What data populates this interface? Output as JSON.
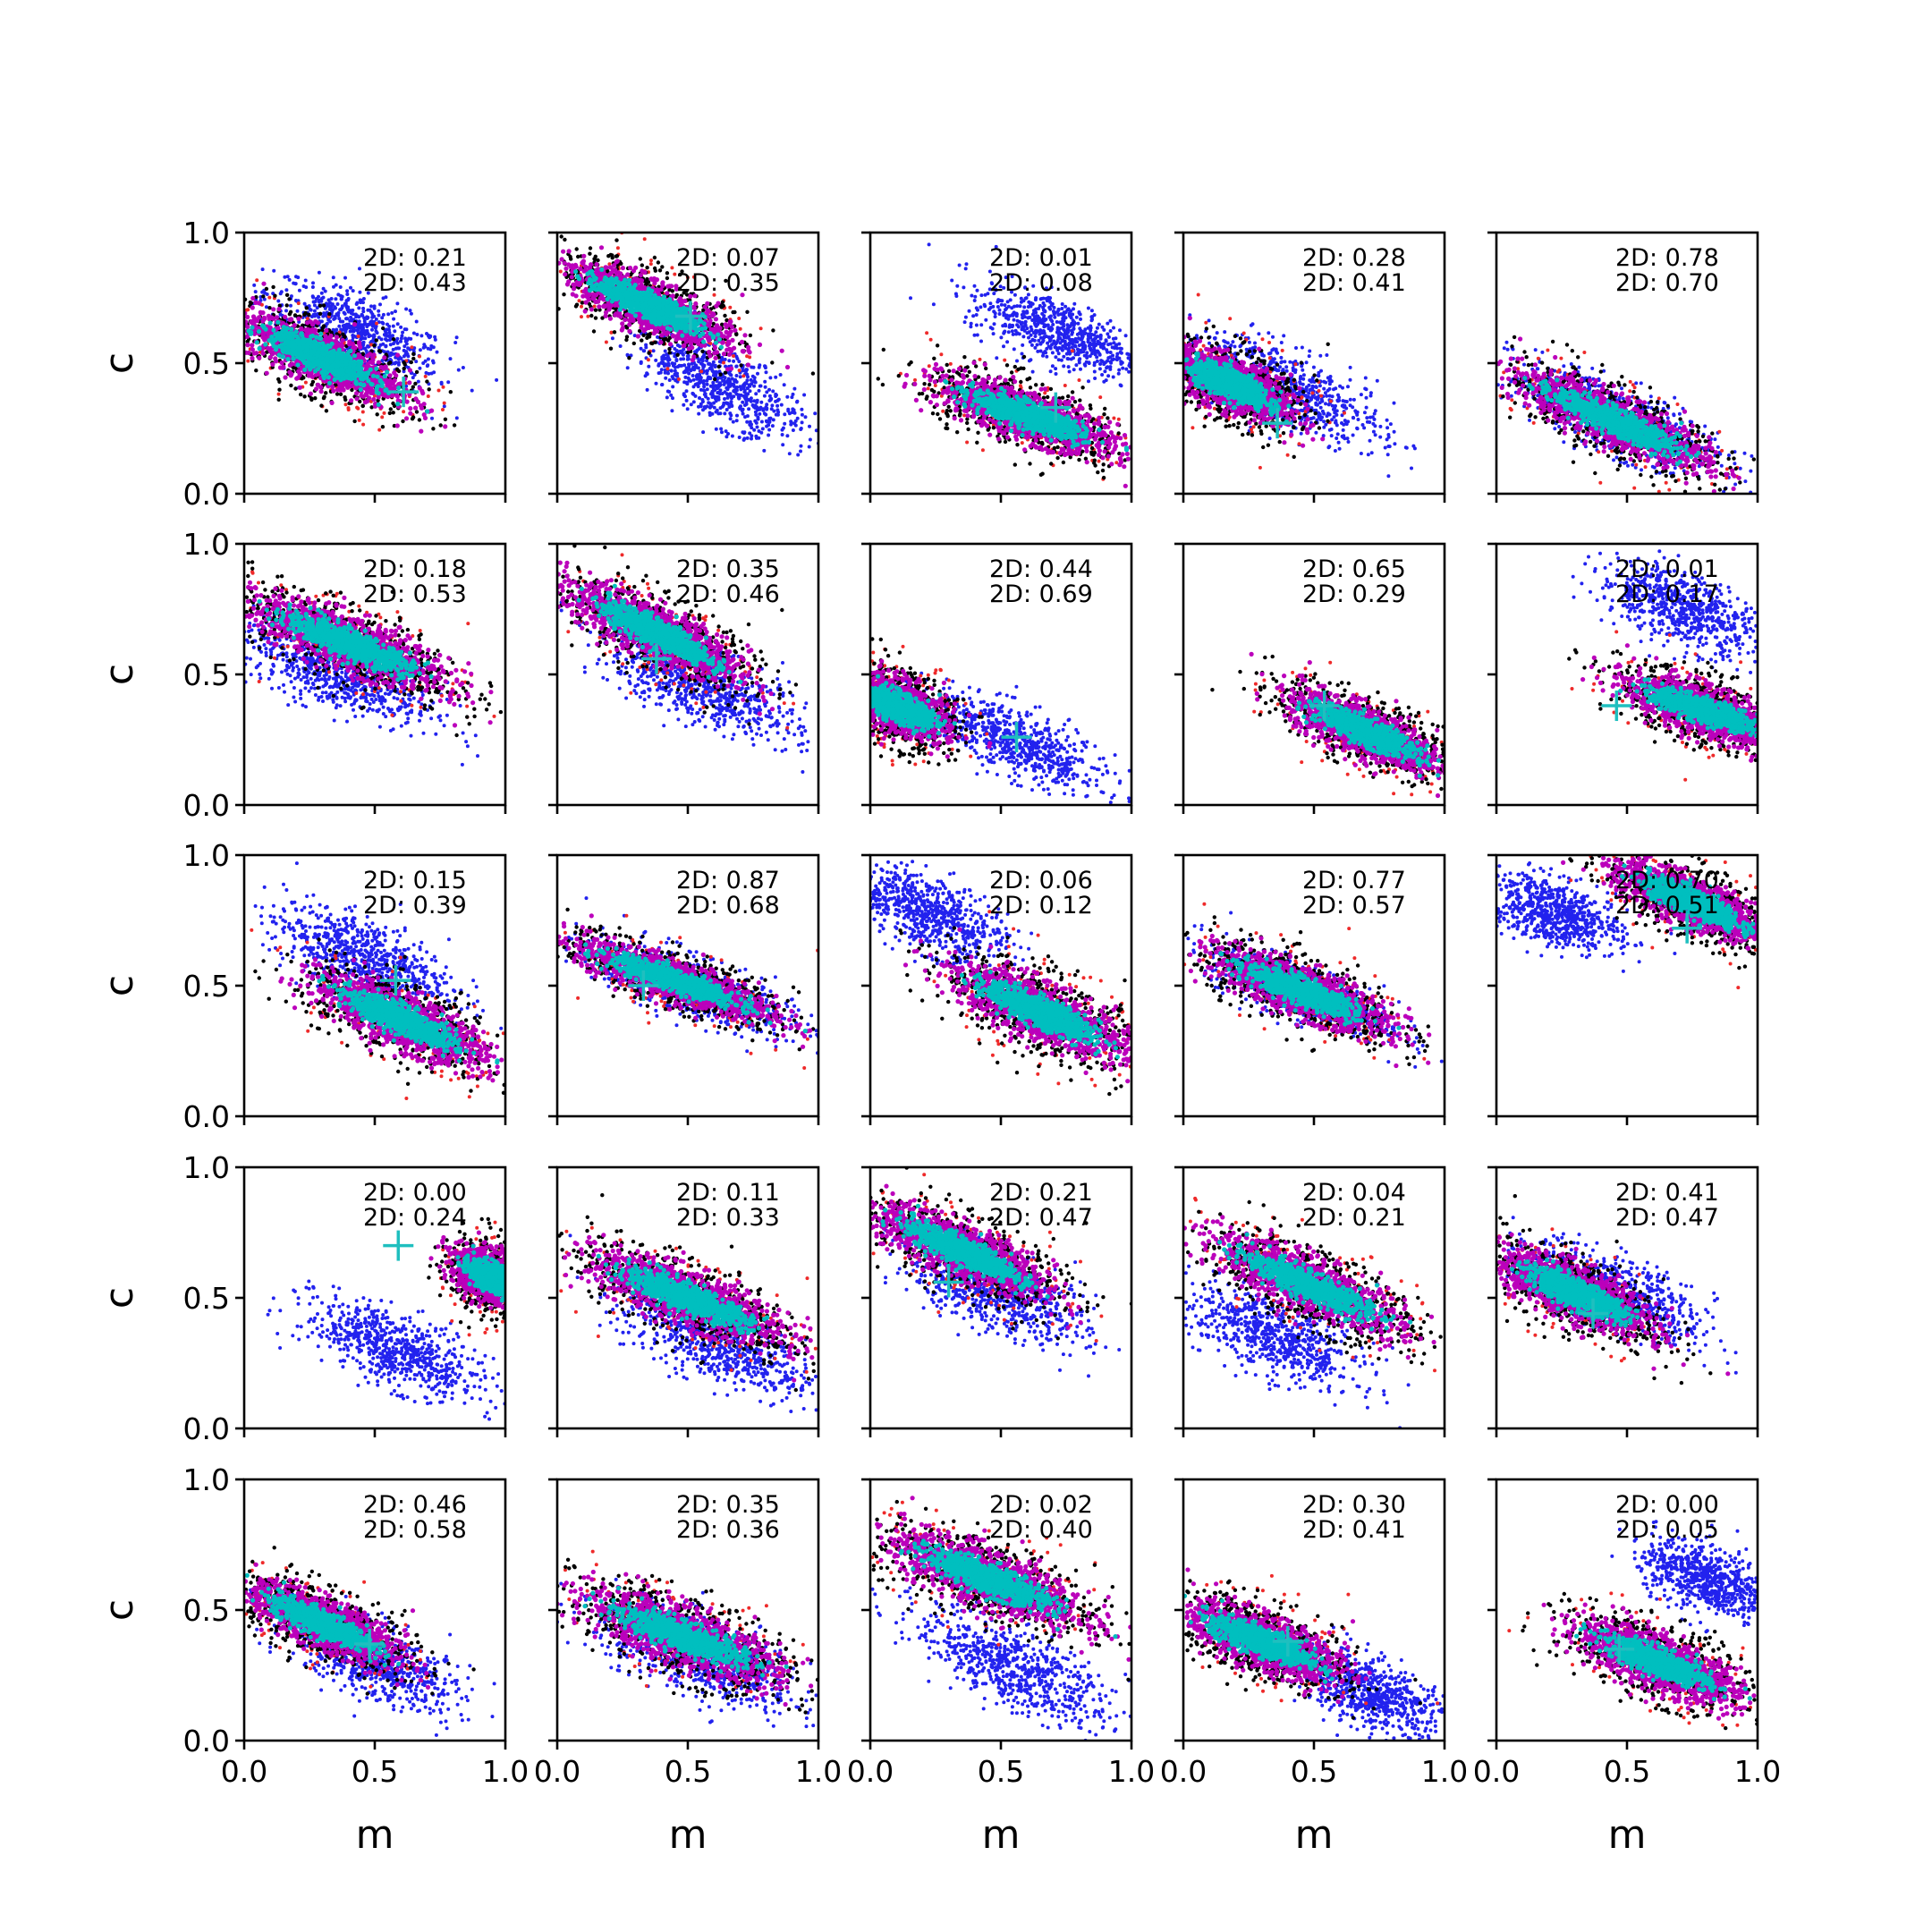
{
  "colors": {
    "blue": "#2222ee",
    "red": "#ee2a2a",
    "black": "#000000",
    "magenta": "#bb00bb",
    "cyan": "#00bfbf",
    "marker": "#1fbfbf"
  },
  "chart_data": {
    "type": "scatter",
    "layout": "5x5 grid of panels",
    "xlabel": "m",
    "ylabel": "c",
    "xlim": [
      0,
      1
    ],
    "ylim": [
      0,
      1
    ],
    "xticks": [
      "0.0",
      "0.5",
      "1.0"
    ],
    "yticks": [
      "0.0",
      "0.5",
      "1.0"
    ],
    "grid": false,
    "panels": [
      {
        "row": 0,
        "col": 0,
        "annot": [
          "2D: 0.21",
          "2D: 0.43"
        ],
        "main": {
          "cx": 0.3,
          "cy": 0.52,
          "slope": -0.45,
          "len": 0.42,
          "wid": 0.065
        },
        "blue": {
          "cx": 0.42,
          "cy": 0.62,
          "slope": -0.45,
          "len": 0.4,
          "wid": 0.07
        },
        "marker": [
          0.61,
          0.39
        ]
      },
      {
        "row": 0,
        "col": 1,
        "annot": [
          "2D: 0.07",
          "2D: 0.35"
        ],
        "main": {
          "cx": 0.35,
          "cy": 0.72,
          "slope": -0.45,
          "len": 0.42,
          "wid": 0.06
        },
        "blue": {
          "cx": 0.62,
          "cy": 0.42,
          "slope": -0.55,
          "len": 0.38,
          "wid": 0.065
        },
        "marker": [
          0.51,
          0.68
        ]
      },
      {
        "row": 0,
        "col": 2,
        "annot": [
          "2D: 0.01",
          "2D: 0.08"
        ],
        "main": {
          "cx": 0.6,
          "cy": 0.3,
          "slope": -0.35,
          "len": 0.45,
          "wid": 0.06
        },
        "blue": {
          "cx": 0.72,
          "cy": 0.62,
          "slope": -0.4,
          "len": 0.38,
          "wid": 0.06
        },
        "marker": [
          0.71,
          0.33
        ]
      },
      {
        "row": 0,
        "col": 3,
        "annot": [
          "2D: 0.28",
          "2D: 0.41"
        ],
        "main": {
          "cx": 0.18,
          "cy": 0.42,
          "slope": -0.45,
          "len": 0.32,
          "wid": 0.065
        },
        "blue": {
          "cx": 0.4,
          "cy": 0.4,
          "slope": -0.45,
          "len": 0.45,
          "wid": 0.07
        },
        "marker": [
          0.36,
          0.27
        ]
      },
      {
        "row": 0,
        "col": 4,
        "annot": [
          "2D: 0.78",
          "2D: 0.70"
        ],
        "main": {
          "cx": 0.45,
          "cy": 0.28,
          "slope": -0.45,
          "len": 0.5,
          "wid": 0.06
        },
        "blue": {
          "cx": 0.45,
          "cy": 0.29,
          "slope": -0.45,
          "len": 0.48,
          "wid": 0.06
        },
        "marker": null
      },
      {
        "row": 1,
        "col": 0,
        "annot": [
          "2D: 0.18",
          "2D: 0.53"
        ],
        "main": {
          "cx": 0.4,
          "cy": 0.62,
          "slope": -0.4,
          "len": 0.5,
          "wid": 0.065
        },
        "blue": {
          "cx": 0.35,
          "cy": 0.5,
          "slope": -0.4,
          "len": 0.45,
          "wid": 0.065
        },
        "marker": null
      },
      {
        "row": 1,
        "col": 1,
        "annot": [
          "2D: 0.35",
          "2D: 0.46"
        ],
        "main": {
          "cx": 0.38,
          "cy": 0.66,
          "slope": -0.5,
          "len": 0.45,
          "wid": 0.065
        },
        "blue": {
          "cx": 0.55,
          "cy": 0.45,
          "slope": -0.45,
          "len": 0.45,
          "wid": 0.065
        },
        "marker": [
          0.38,
          0.56
        ]
      },
      {
        "row": 1,
        "col": 2,
        "annot": [
          "2D: 0.44",
          "2D: 0.69"
        ],
        "main": {
          "cx": 0.1,
          "cy": 0.38,
          "slope": -0.45,
          "len": 0.28,
          "wid": 0.065
        },
        "blue": {
          "cx": 0.55,
          "cy": 0.24,
          "slope": -0.45,
          "len": 0.42,
          "wid": 0.06
        },
        "marker": [
          0.56,
          0.26
        ]
      },
      {
        "row": 1,
        "col": 3,
        "annot": [
          "2D: 0.65",
          "2D: 0.29"
        ],
        "main": {
          "cx": 0.7,
          "cy": 0.28,
          "slope": -0.45,
          "len": 0.4,
          "wid": 0.06
        },
        "blue": null,
        "marker": [
          0.54,
          0.38
        ]
      },
      {
        "row": 1,
        "col": 4,
        "annot": [
          "2D: 0.01",
          "2D: 0.17"
        ],
        "main": {
          "cx": 0.8,
          "cy": 0.36,
          "slope": -0.35,
          "len": 0.4,
          "wid": 0.06
        },
        "blue": {
          "cx": 0.72,
          "cy": 0.75,
          "slope": -0.4,
          "len": 0.38,
          "wid": 0.065
        },
        "marker": [
          0.46,
          0.38
        ]
      },
      {
        "row": 2,
        "col": 0,
        "annot": [
          "2D: 0.15",
          "2D: 0.39"
        ],
        "main": {
          "cx": 0.6,
          "cy": 0.37,
          "slope": -0.45,
          "len": 0.45,
          "wid": 0.065
        },
        "blue": {
          "cx": 0.45,
          "cy": 0.62,
          "slope": -0.4,
          "len": 0.4,
          "wid": 0.065
        },
        "marker": [
          0.58,
          0.52
        ]
      },
      {
        "row": 2,
        "col": 1,
        "annot": [
          "2D: 0.87",
          "2D: 0.68"
        ],
        "main": {
          "cx": 0.45,
          "cy": 0.52,
          "slope": -0.35,
          "len": 0.5,
          "wid": 0.05
        },
        "blue": {
          "cx": 0.5,
          "cy": 0.5,
          "slope": -0.38,
          "len": 0.45,
          "wid": 0.055
        },
        "marker": [
          0.33,
          0.5
        ]
      },
      {
        "row": 2,
        "col": 2,
        "annot": [
          "2D: 0.06",
          "2D: 0.12"
        ],
        "main": {
          "cx": 0.65,
          "cy": 0.4,
          "slope": -0.45,
          "len": 0.45,
          "wid": 0.07
        },
        "blue": {
          "cx": 0.22,
          "cy": 0.78,
          "slope": -0.45,
          "len": 0.35,
          "wid": 0.065
        },
        "marker": null
      },
      {
        "row": 2,
        "col": 3,
        "annot": [
          "2D: 0.77",
          "2D: 0.57"
        ],
        "main": {
          "cx": 0.45,
          "cy": 0.48,
          "slope": -0.4,
          "len": 0.45,
          "wid": 0.06
        },
        "blue": {
          "cx": 0.45,
          "cy": 0.48,
          "slope": -0.4,
          "len": 0.4,
          "wid": 0.05
        },
        "marker": null
      },
      {
        "row": 2,
        "col": 4,
        "annot": [
          "2D: 0.70",
          "2D: 0.51"
        ],
        "main": {
          "cx": 0.75,
          "cy": 0.82,
          "slope": -0.45,
          "len": 0.4,
          "wid": 0.06
        },
        "blue": {
          "cx": 0.22,
          "cy": 0.78,
          "slope": -0.35,
          "len": 0.3,
          "wid": 0.06
        },
        "marker": [
          0.73,
          0.72
        ]
      },
      {
        "row": 3,
        "col": 0,
        "annot": [
          "2D: 0.00",
          "2D: 0.24"
        ],
        "main": {
          "cx": 0.95,
          "cy": 0.58,
          "slope": -0.5,
          "len": 0.2,
          "wid": 0.06
        },
        "blue": {
          "cx": 0.58,
          "cy": 0.3,
          "slope": -0.45,
          "len": 0.4,
          "wid": 0.065
        },
        "marker": [
          0.59,
          0.7
        ]
      },
      {
        "row": 3,
        "col": 1,
        "annot": [
          "2D: 0.11",
          "2D: 0.33"
        ],
        "main": {
          "cx": 0.5,
          "cy": 0.5,
          "slope": -0.4,
          "len": 0.5,
          "wid": 0.065
        },
        "blue": {
          "cx": 0.62,
          "cy": 0.32,
          "slope": -0.45,
          "len": 0.45,
          "wid": 0.07
        },
        "marker": null
      },
      {
        "row": 3,
        "col": 2,
        "annot": [
          "2D: 0.21",
          "2D: 0.47"
        ],
        "main": {
          "cx": 0.35,
          "cy": 0.68,
          "slope": -0.45,
          "len": 0.45,
          "wid": 0.065
        },
        "blue": {
          "cx": 0.48,
          "cy": 0.52,
          "slope": -0.45,
          "len": 0.42,
          "wid": 0.07
        },
        "marker": [
          0.3,
          0.56
        ]
      },
      {
        "row": 3,
        "col": 3,
        "annot": [
          "2D: 0.04",
          "2D: 0.21"
        ],
        "main": {
          "cx": 0.48,
          "cy": 0.55,
          "slope": -0.45,
          "len": 0.5,
          "wid": 0.065
        },
        "blue": {
          "cx": 0.35,
          "cy": 0.35,
          "slope": -0.45,
          "len": 0.4,
          "wid": 0.07
        },
        "marker": null
      },
      {
        "row": 3,
        "col": 4,
        "annot": [
          "2D: 0.41",
          "2D: 0.47"
        ],
        "main": {
          "cx": 0.3,
          "cy": 0.52,
          "slope": -0.45,
          "len": 0.4,
          "wid": 0.065
        },
        "blue": {
          "cx": 0.45,
          "cy": 0.52,
          "slope": -0.45,
          "len": 0.4,
          "wid": 0.065
        },
        "marker": [
          0.37,
          0.44
        ]
      },
      {
        "row": 4,
        "col": 0,
        "annot": [
          "2D: 0.46",
          "2D: 0.58"
        ],
        "main": {
          "cx": 0.3,
          "cy": 0.45,
          "slope": -0.45,
          "len": 0.4,
          "wid": 0.06
        },
        "blue": {
          "cx": 0.5,
          "cy": 0.3,
          "slope": -0.45,
          "len": 0.4,
          "wid": 0.065
        },
        "marker": [
          0.48,
          0.37
        ]
      },
      {
        "row": 4,
        "col": 1,
        "annot": [
          "2D: 0.35",
          "2D: 0.36"
        ],
        "main": {
          "cx": 0.48,
          "cy": 0.4,
          "slope": -0.38,
          "len": 0.5,
          "wid": 0.07
        },
        "blue": {
          "cx": 0.55,
          "cy": 0.32,
          "slope": -0.4,
          "len": 0.45,
          "wid": 0.07
        },
        "marker": null
      },
      {
        "row": 4,
        "col": 2,
        "annot": [
          "2D: 0.02",
          "2D: 0.40"
        ],
        "main": {
          "cx": 0.45,
          "cy": 0.62,
          "slope": -0.4,
          "len": 0.5,
          "wid": 0.07
        },
        "blue": {
          "cx": 0.55,
          "cy": 0.28,
          "slope": -0.5,
          "len": 0.45,
          "wid": 0.07
        },
        "marker": null
      },
      {
        "row": 4,
        "col": 3,
        "annot": [
          "2D: 0.30",
          "2D: 0.41"
        ],
        "main": {
          "cx": 0.3,
          "cy": 0.38,
          "slope": -0.4,
          "len": 0.4,
          "wid": 0.065
        },
        "blue": {
          "cx": 0.72,
          "cy": 0.18,
          "slope": -0.45,
          "len": 0.35,
          "wid": 0.06
        },
        "marker": [
          0.4,
          0.38
        ]
      },
      {
        "row": 4,
        "col": 4,
        "annot": [
          "2D: 0.00",
          "2D: 0.05"
        ],
        "main": {
          "cx": 0.62,
          "cy": 0.3,
          "slope": -0.4,
          "len": 0.42,
          "wid": 0.065
        },
        "blue": {
          "cx": 0.8,
          "cy": 0.62,
          "slope": -0.4,
          "len": 0.28,
          "wid": 0.06
        },
        "marker": [
          0.47,
          0.35
        ]
      }
    ]
  }
}
